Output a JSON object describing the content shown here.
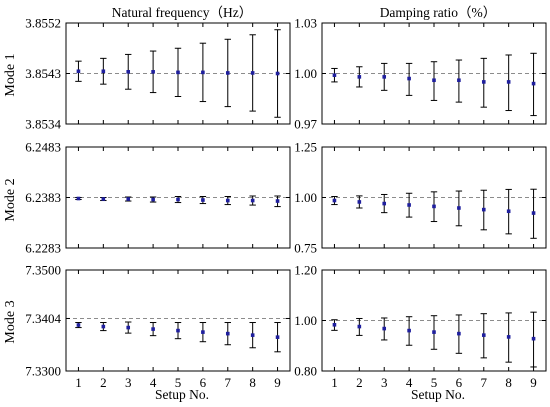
{
  "column_titles": [
    "Natural frequency（Hz）",
    "Damping ratio（%）"
  ],
  "row_labels": [
    "Mode 1",
    "Mode 2",
    "Mode 3"
  ],
  "x_title": "Setup No.",
  "colors": {
    "marker": "#1f1f9e",
    "reference_line": "#8c8c8c",
    "error_bar": "#000000",
    "frame": "#000000"
  },
  "chart_data": [
    {
      "type": "scatter",
      "subtype": "errorbar",
      "row": 0,
      "col": 0,
      "x": [
        1,
        2,
        3,
        4,
        5,
        6,
        7,
        8,
        9
      ],
      "y": [
        3.85434,
        3.85434,
        3.85433,
        3.85433,
        3.85432,
        3.85432,
        3.85431,
        3.85431,
        3.8543
      ],
      "err_low": [
        0.00018,
        0.00023,
        0.00031,
        0.00037,
        0.00043,
        0.00052,
        0.0006,
        0.00068,
        0.00078
      ],
      "err_high": [
        0.00018,
        0.00023,
        0.00031,
        0.00037,
        0.00043,
        0.00052,
        0.0006,
        0.00068,
        0.00078
      ],
      "reference": 3.8543,
      "xlim": [
        0.5,
        9.5
      ],
      "ylim": [
        3.8534,
        3.8552
      ],
      "yticks": [
        "3.8534",
        "3.8543",
        "3.8552"
      ],
      "xticks": [
        "1",
        "2",
        "3",
        "4",
        "5",
        "6",
        "7",
        "8",
        "9"
      ],
      "xlabel": "",
      "ylabel": "Mode 1",
      "title": "Natural frequency（Hz）",
      "grid": false
    },
    {
      "type": "scatter",
      "subtype": "errorbar",
      "row": 0,
      "col": 1,
      "x": [
        1,
        2,
        3,
        4,
        5,
        6,
        7,
        8,
        9
      ],
      "y": [
        0.999,
        0.998,
        0.998,
        0.997,
        0.996,
        0.996,
        0.995,
        0.995,
        0.994
      ],
      "err_low": [
        0.004,
        0.006,
        0.008,
        0.01,
        0.012,
        0.013,
        0.015,
        0.017,
        0.019
      ],
      "err_high": [
        0.004,
        0.006,
        0.008,
        0.009,
        0.011,
        0.012,
        0.014,
        0.016,
        0.018
      ],
      "reference": 1.0,
      "xlim": [
        0.5,
        9.5
      ],
      "ylim": [
        0.97,
        1.03
      ],
      "yticks": [
        "0.97",
        "1.00",
        "1.03"
      ],
      "xticks": [
        "1",
        "2",
        "3",
        "4",
        "5",
        "6",
        "7",
        "8",
        "9"
      ],
      "xlabel": "",
      "ylabel": "",
      "title": "Damping ratio（%）",
      "grid": false
    },
    {
      "type": "scatter",
      "subtype": "errorbar",
      "row": 1,
      "col": 0,
      "x": [
        1,
        2,
        3,
        4,
        5,
        6,
        7,
        8,
        9
      ],
      "y": [
        6.2381,
        6.238,
        6.238,
        6.2379,
        6.2379,
        6.2378,
        6.2377,
        6.2377,
        6.2376
      ],
      "err_low": [
        0.0002,
        0.0003,
        0.0004,
        0.0005,
        0.0006,
        0.0007,
        0.0008,
        0.0009,
        0.0011
      ],
      "err_high": [
        0.0002,
        0.0003,
        0.0004,
        0.0005,
        0.0006,
        0.0007,
        0.0008,
        0.0009,
        0.001
      ],
      "reference": 6.2383,
      "xlim": [
        0.5,
        9.5
      ],
      "ylim": [
        6.2283,
        6.2483
      ],
      "yticks": [
        "6.2283",
        "6.2383",
        "6.2483"
      ],
      "xticks": [
        "1",
        "2",
        "3",
        "4",
        "5",
        "6",
        "7",
        "8",
        "9"
      ],
      "xlabel": "",
      "ylabel": "Mode 2",
      "title": "",
      "grid": false
    },
    {
      "type": "scatter",
      "subtype": "errorbar",
      "row": 1,
      "col": 1,
      "x": [
        1,
        2,
        3,
        4,
        5,
        6,
        7,
        8,
        9
      ],
      "y": [
        0.985,
        0.978,
        0.97,
        0.963,
        0.956,
        0.948,
        0.94,
        0.932,
        0.923
      ],
      "err_low": [
        0.02,
        0.03,
        0.045,
        0.06,
        0.075,
        0.088,
        0.1,
        0.112,
        0.125
      ],
      "err_high": [
        0.02,
        0.03,
        0.045,
        0.058,
        0.072,
        0.084,
        0.096,
        0.108,
        0.118
      ],
      "reference": 1.0,
      "xlim": [
        0.5,
        9.5
      ],
      "ylim": [
        0.75,
        1.25
      ],
      "yticks": [
        "0.75",
        "1.00",
        "1.25"
      ],
      "xticks": [
        "1",
        "2",
        "3",
        "4",
        "5",
        "6",
        "7",
        "8",
        "9"
      ],
      "xlabel": "",
      "ylabel": "",
      "title": "",
      "grid": false
    },
    {
      "type": "scatter",
      "subtype": "errorbar",
      "row": 2,
      "col": 0,
      "x": [
        1,
        2,
        3,
        4,
        5,
        6,
        7,
        8,
        9
      ],
      "y": [
        7.3391,
        7.3388,
        7.3386,
        7.3383,
        7.338,
        7.3377,
        7.3374,
        7.3371,
        7.3367
      ],
      "err_low": [
        0.0005,
        0.0008,
        0.0011,
        0.0013,
        0.0016,
        0.0019,
        0.0022,
        0.0025,
        0.0029
      ],
      "err_high": [
        0.0005,
        0.0008,
        0.0011,
        0.0013,
        0.0016,
        0.0019,
        0.0022,
        0.0025,
        0.0029
      ],
      "reference": 7.3404,
      "xlim": [
        0.5,
        9.5
      ],
      "ylim": [
        7.33,
        7.35
      ],
      "yticks": [
        "7.3300",
        "7.3404",
        "7.3500"
      ],
      "ytick_values": [
        7.33,
        7.3404,
        7.35
      ],
      "xticks": [
        "1",
        "2",
        "3",
        "4",
        "5",
        "6",
        "7",
        "8",
        "9"
      ],
      "xlabel": "Setup No.",
      "ylabel": "Mode 3",
      "title": "",
      "grid": false
    },
    {
      "type": "scatter",
      "subtype": "errorbar",
      "row": 2,
      "col": 1,
      "x": [
        1,
        2,
        3,
        4,
        5,
        6,
        7,
        8,
        9
      ],
      "y": [
        0.983,
        0.976,
        0.968,
        0.96,
        0.954,
        0.948,
        0.942,
        0.935,
        0.928
      ],
      "err_low": [
        0.022,
        0.035,
        0.045,
        0.058,
        0.068,
        0.078,
        0.09,
        0.1,
        0.112
      ],
      "err_high": [
        0.02,
        0.032,
        0.042,
        0.055,
        0.065,
        0.074,
        0.085,
        0.095,
        0.105
      ],
      "reference": 1.0,
      "xlim": [
        0.5,
        9.5
      ],
      "ylim": [
        0.8,
        1.2
      ],
      "yticks": [
        "0.80",
        "1.00",
        "1.20"
      ],
      "xticks": [
        "1",
        "2",
        "3",
        "4",
        "5",
        "6",
        "7",
        "8",
        "9"
      ],
      "xlabel": "Setup No.",
      "ylabel": "",
      "title": "",
      "grid": false
    }
  ]
}
